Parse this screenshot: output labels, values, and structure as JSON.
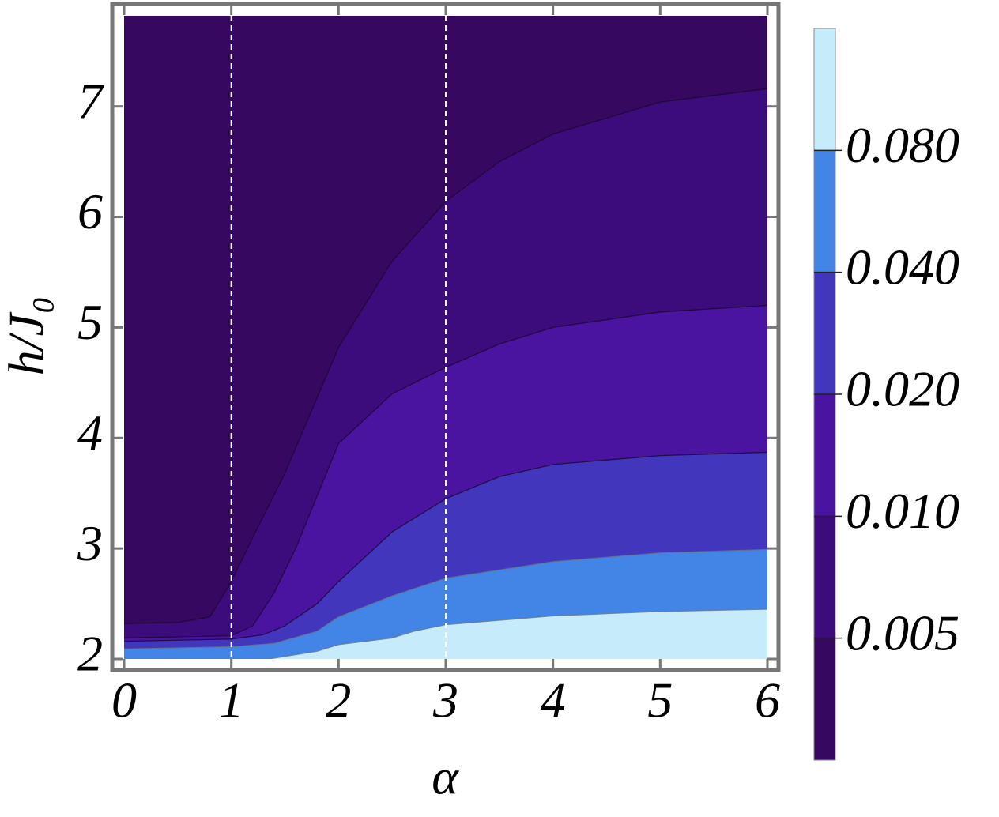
{
  "chart_data": {
    "type": "contour",
    "xlabel": "α",
    "ylabel": "h/J₀",
    "xlim": [
      0,
      6
    ],
    "ylim": [
      2,
      7.82
    ],
    "xticks": [
      0,
      1,
      2,
      3,
      4,
      5,
      6
    ],
    "yticks": [
      2,
      3,
      4,
      5,
      6,
      7
    ],
    "vlines": [
      1,
      3
    ],
    "colors": [
      "#36085f",
      "#3d0c7c",
      "#4a13a0",
      "#4236bd",
      "#4285e6",
      "#c6ecfc"
    ],
    "colorbar_ticks": [
      0.005,
      {
        "value": 0.01,
        "label": "0.010"
      },
      {
        "value": 0.02,
        "label": "0.020"
      },
      {
        "value": 0.04,
        "label": "0.040"
      },
      {
        "value": 0.08,
        "label": "0.080"
      }
    ],
    "contours": [
      {
        "x": [
          0,
          0.5,
          0.8,
          1,
          1.2,
          1.5,
          2,
          2.5,
          3,
          3.5,
          4,
          5,
          6
        ],
        "y": [
          2.32,
          2.33,
          2.38,
          2.7,
          3.1,
          3.68,
          4.82,
          5.6,
          6.14,
          6.5,
          6.75,
          7.04,
          7.16
        ]
      },
      {
        "x": [
          0,
          1,
          1.2,
          1.4,
          1.6,
          2,
          2.5,
          3,
          3.5,
          4,
          5,
          6
        ],
        "y": [
          2.19,
          2.21,
          2.3,
          2.6,
          3.0,
          3.95,
          4.4,
          4.64,
          4.85,
          5.0,
          5.14,
          5.2
        ]
      },
      {
        "x": [
          0,
          1,
          1.3,
          1.5,
          1.8,
          2,
          2.5,
          3,
          3.5,
          4,
          5,
          6
        ],
        "y": [
          2.16,
          2.18,
          2.22,
          2.3,
          2.5,
          2.7,
          3.15,
          3.45,
          3.65,
          3.76,
          3.84,
          3.87
        ]
      },
      {
        "x": [
          0,
          1,
          1.4,
          1.8,
          2,
          2.5,
          3,
          4,
          5,
          6
        ],
        "y": [
          2.09,
          2.11,
          2.14,
          2.25,
          2.38,
          2.57,
          2.73,
          2.88,
          2.96,
          2.99
        ]
      },
      {
        "x": [
          1.35,
          1.8,
          2,
          2.5,
          2.7,
          3,
          4,
          5,
          6
        ],
        "y": [
          2.0,
          2.07,
          2.13,
          2.19,
          2.25,
          2.31,
          2.39,
          2.43,
          2.45
        ]
      }
    ]
  }
}
